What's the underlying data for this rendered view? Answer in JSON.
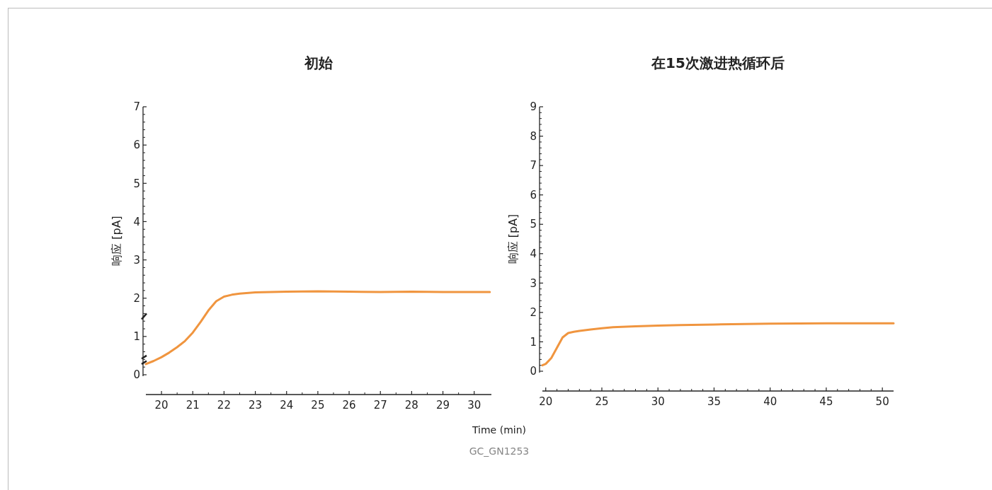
{
  "chart_data": [
    {
      "type": "line",
      "title": "初始",
      "xlabel": "Time (min)",
      "ylabel": "响应 [pA]",
      "annotations": [
        "GC_GN1253"
      ],
      "xlim": [
        19.5,
        30.55
      ],
      "xticks": [
        20,
        21,
        22,
        23,
        24,
        25,
        26,
        27,
        28,
        29,
        30
      ],
      "ylim": [
        0,
        7
      ],
      "yticks": [
        0,
        1,
        2,
        3,
        4,
        5,
        6,
        7
      ],
      "grid": false,
      "series": [
        {
          "color": "#f0953f",
          "x": [
            19.5,
            19.75,
            20,
            20.25,
            20.5,
            20.75,
            21,
            21.25,
            21.5,
            21.75,
            22,
            22.25,
            22.5,
            23,
            23.5,
            24,
            25,
            26,
            27,
            28,
            29,
            30,
            30.5
          ],
          "values": [
            0.28,
            0.36,
            0.46,
            0.58,
            0.72,
            0.88,
            1.1,
            1.38,
            1.68,
            1.92,
            2.04,
            2.09,
            2.12,
            2.15,
            2.16,
            2.17,
            2.18,
            2.17,
            2.16,
            2.17,
            2.16,
            2.16,
            2.16
          ]
        }
      ]
    },
    {
      "type": "line",
      "title": "在15次激进热循环后",
      "ylabel": "响应 [pA]",
      "xlim": [
        19.7,
        51
      ],
      "xticks": [
        20,
        25,
        30,
        35,
        40,
        45,
        50
      ],
      "ylim": [
        0,
        9
      ],
      "yticks": [
        0,
        1,
        2,
        3,
        4,
        5,
        6,
        7,
        8,
        9
      ],
      "grid": false,
      "series": [
        {
          "color": "#f0953f",
          "x": [
            19.7,
            20,
            20.5,
            21,
            21.5,
            22,
            22.5,
            23,
            24,
            25,
            26,
            28,
            30,
            32,
            35,
            40,
            45,
            50,
            51
          ],
          "values": [
            0.2,
            0.25,
            0.45,
            0.8,
            1.15,
            1.3,
            1.34,
            1.37,
            1.42,
            1.46,
            1.5,
            1.53,
            1.55,
            1.57,
            1.59,
            1.62,
            1.63,
            1.63,
            1.63
          ]
        }
      ]
    }
  ]
}
